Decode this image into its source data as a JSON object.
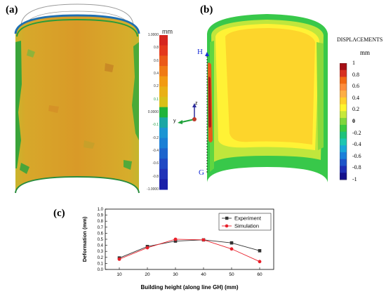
{
  "panel_a": {
    "label": "(a)",
    "unit": "mm",
    "scale_labels": [
      "1.0000",
      "0.8",
      "0.6",
      "0.4",
      "0.2",
      "0.1",
      "0.0000",
      "-0.1",
      "-0.2",
      "-0.4",
      "-0.6",
      "-0.8",
      "-1.0000"
    ],
    "scale_colors": [
      "#d6261f",
      "#e4391d",
      "#eb5a18",
      "#f07a14",
      "#f29a12",
      "#e9b015",
      "#d8c018",
      "#1fb43a",
      "#1aa7a4",
      "#1b95d3",
      "#1a7fd5",
      "#1d64cd",
      "#2049c4",
      "#2133b8",
      "#1a1fa8"
    ],
    "axis_z": "z",
    "axis_y": "y"
  },
  "panel_b": {
    "label": "(b)",
    "title": "DISPLACEMENTS",
    "unit": "mm",
    "scale_labels": [
      "1",
      "0.8",
      "0.6",
      "0.4",
      "0.2",
      "0",
      "-0.2",
      "-0.4",
      "-0.6",
      "-0.8",
      "-1"
    ],
    "scale_colors": [
      "#a50f15",
      "#d7301f",
      "#f16913",
      "#fd8d3c",
      "#fdae45",
      "#ffd02b",
      "#fff52e",
      "#c7e83a",
      "#7ed63c",
      "#3cc93f",
      "#1ec27a",
      "#1cc6b0",
      "#1aa7d8",
      "#1b7fd9",
      "#1e55c9",
      "#1f2fb4",
      "#14108a"
    ],
    "point_top": "H",
    "point_bottom": "G"
  },
  "panel_c": {
    "label": "(c)"
  },
  "chart_data": {
    "type": "line",
    "title": "",
    "xlabel": "Building height (along line GH) (mm)",
    "ylabel": "Deformation (mm)",
    "x": [
      10,
      20,
      30,
      40,
      50,
      60
    ],
    "xlim": [
      5,
      65
    ],
    "xticks": [
      10,
      20,
      30,
      40,
      50,
      60
    ],
    "ylim": [
      0.0,
      1.0
    ],
    "yticks": [
      0.0,
      0.1,
      0.2,
      0.3,
      0.4,
      0.5,
      0.6,
      0.7,
      0.8,
      0.9,
      1.0
    ],
    "legend_position": "top-right",
    "grid": false,
    "series": [
      {
        "name": "Experiment",
        "values": [
          0.19,
          0.38,
          0.47,
          0.49,
          0.44,
          0.31
        ],
        "color": "#333333",
        "marker": "square"
      },
      {
        "name": "Simulation",
        "values": [
          0.17,
          0.36,
          0.5,
          0.49,
          0.34,
          0.13
        ],
        "color": "#e8202a",
        "marker": "circle"
      }
    ]
  }
}
